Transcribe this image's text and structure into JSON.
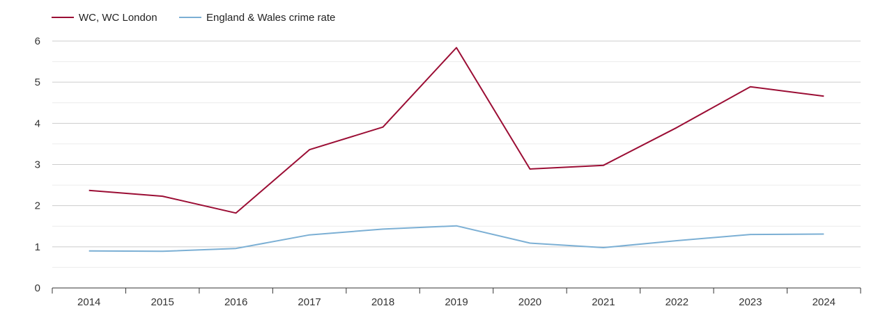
{
  "chart_data": {
    "type": "line",
    "title": "",
    "xlabel": "",
    "ylabel": "",
    "x": [
      "2014",
      "2015",
      "2016",
      "2017",
      "2018",
      "2019",
      "2020",
      "2021",
      "2022",
      "2023",
      "2024"
    ],
    "ylim": [
      0,
      6
    ],
    "yticks": [
      "0",
      "1",
      "2",
      "3",
      "4",
      "5",
      "6"
    ],
    "grid": true,
    "legend_position": "top-left",
    "series": [
      {
        "name": "WC, WC London",
        "color": "#9b0d34",
        "values": [
          2.37,
          2.23,
          1.82,
          3.36,
          3.91,
          5.84,
          2.89,
          2.98,
          3.9,
          4.89,
          4.66
        ]
      },
      {
        "name": "England & Wales crime rate",
        "color": "#7bafd4",
        "values": [
          0.9,
          0.89,
          0.96,
          1.29,
          1.43,
          1.51,
          1.09,
          0.98,
          1.15,
          1.3,
          1.31
        ]
      }
    ]
  }
}
